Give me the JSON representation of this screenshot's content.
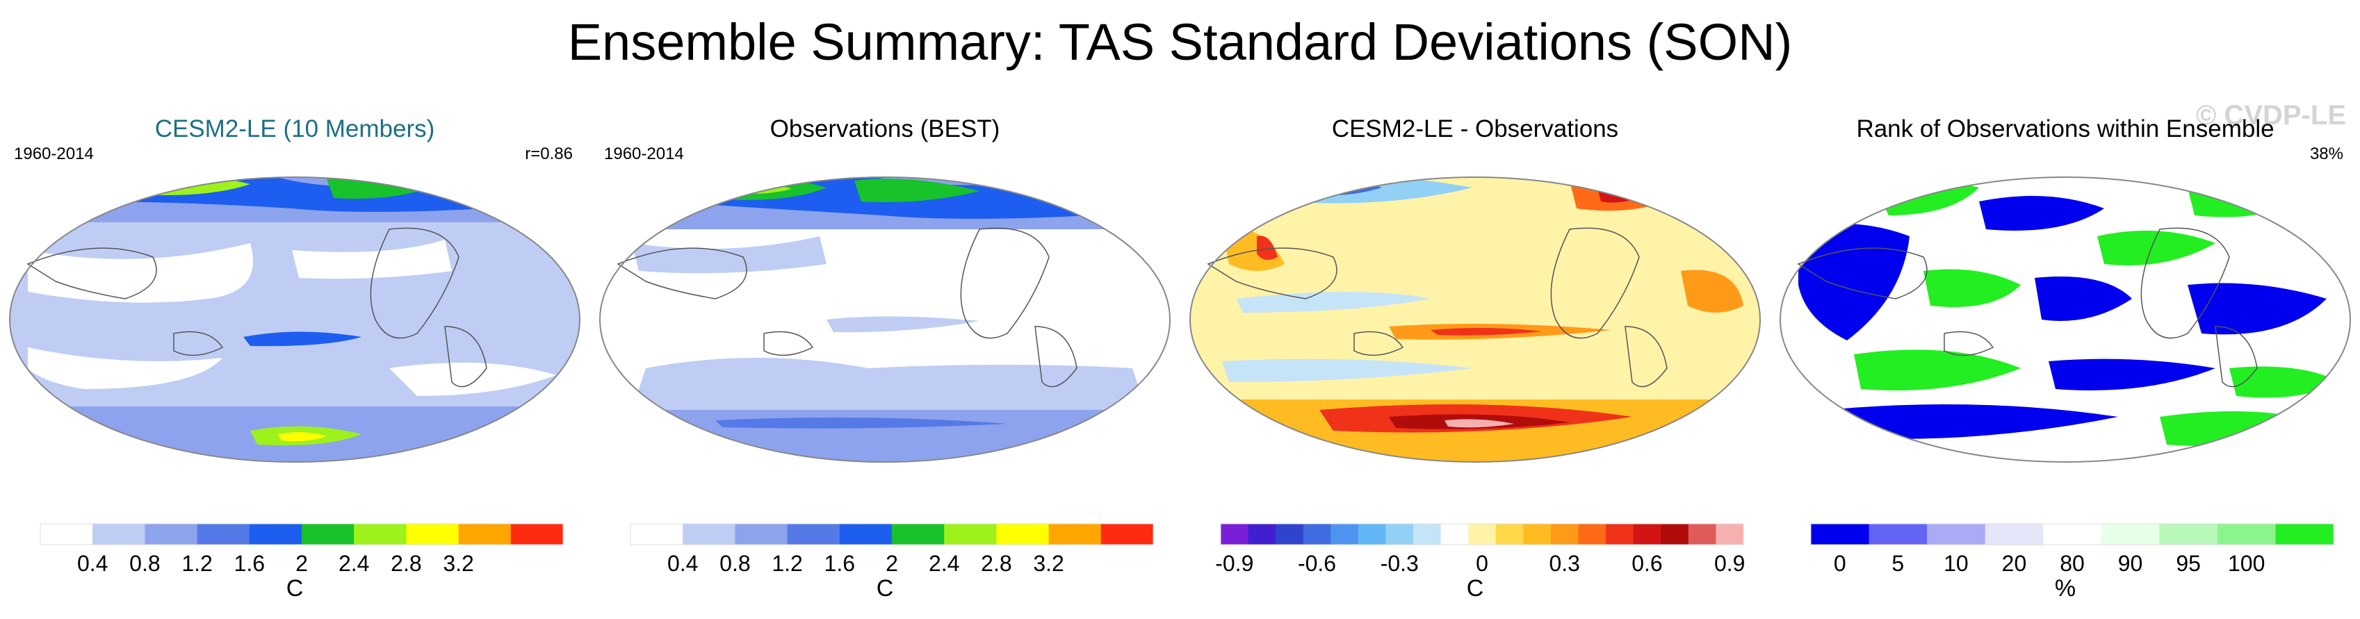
{
  "title": "Ensemble Summary: TAS Standard Deviations (SON)",
  "watermark": "© CVDP-LE",
  "colors": {
    "sd_scale": [
      "#ffffff",
      "#bfcdf5",
      "#8ea3ee",
      "#5579e7",
      "#1d5ef0",
      "#17c22a",
      "#9cf21a",
      "#ffff00",
      "#ffa500",
      "#ff2a10"
    ],
    "diff_scale": [
      "#7a1ed8",
      "#3f1fd0",
      "#2e44ce",
      "#3f6cde",
      "#4f93f0",
      "#61b7f5",
      "#93d0f6",
      "#c6e4f8",
      "#ffffff",
      "#fff3a8",
      "#ffd84a",
      "#ffbc22",
      "#ff9a19",
      "#ff6a18",
      "#f0321a",
      "#d41414",
      "#b10c0c",
      "#e05a5a",
      "#f6b0b0"
    ],
    "rank_scale": [
      "#0000ee",
      "#6464f4",
      "#aaaaf6",
      "#e6e6fb",
      "#ffffff",
      "#e8ffe8",
      "#b8f8b8",
      "#8cf48c",
      "#22ee22"
    ],
    "ocean": "#ffffff",
    "coast": "#555555"
  },
  "panels": [
    {
      "title": "CESM2-LE (10 Members)",
      "years": "1960-2014",
      "stat": "r=0.86",
      "unit": "C",
      "bar_ticks": [
        "0.4",
        "0.8",
        "1.2",
        "1.6",
        "2",
        "2.4",
        "2.8",
        "3.2"
      ],
      "levels": [
        0,
        0.4,
        0.8,
        1.2,
        1.6,
        2,
        2.4,
        2.8,
        3.2
      ]
    },
    {
      "title": "Observations (BEST)",
      "years": "1960-2014",
      "stat": "",
      "unit": "C",
      "bar_ticks": [
        "0.4",
        "0.8",
        "1.2",
        "1.6",
        "2",
        "2.4",
        "2.8",
        "3.2"
      ],
      "levels": [
        0,
        0.4,
        0.8,
        1.2,
        1.6,
        2,
        2.4,
        2.8,
        3.2
      ]
    },
    {
      "title": "CESM2-LE - Observations",
      "years": "",
      "stat": "",
      "unit": "C",
      "bar_ticks": [
        "-0.9",
        "-0.6",
        "-0.3",
        "0",
        "0.3",
        "0.6",
        "0.9"
      ],
      "levels": [
        -0.9,
        -0.6,
        -0.3,
        0,
        0.3,
        0.6,
        0.9
      ]
    },
    {
      "title": "Rank of Observations within Ensemble",
      "years": "",
      "stat": "38%",
      "unit": "%",
      "bar_ticks": [
        "0",
        "5",
        "10",
        "20",
        "80",
        "90",
        "95",
        "100"
      ],
      "levels": [
        0,
        5,
        10,
        20,
        80,
        90,
        95,
        100
      ]
    }
  ],
  "chart_data": [
    {
      "type": "heatmap",
      "title": "CESM2-LE (10 Members)",
      "projection": "Robinson",
      "period": "1960-2014",
      "pattern_correlation": 0.86,
      "variable": "TAS standard deviation",
      "units": "C",
      "contour_levels": [
        0.4,
        0.8,
        1.2,
        1.6,
        2,
        2.4,
        2.8,
        3.2
      ]
    },
    {
      "type": "heatmap",
      "title": "Observations (BEST)",
      "projection": "Robinson",
      "period": "1960-2014",
      "variable": "TAS standard deviation",
      "units": "C",
      "contour_levels": [
        0.4,
        0.8,
        1.2,
        1.6,
        2,
        2.4,
        2.8,
        3.2
      ]
    },
    {
      "type": "heatmap",
      "title": "CESM2-LE - Observations",
      "projection": "Robinson",
      "variable": "difference",
      "units": "C",
      "contour_levels": [
        -0.9,
        -0.6,
        -0.3,
        0,
        0.3,
        0.6,
        0.9
      ]
    },
    {
      "type": "heatmap",
      "title": "Rank of Observations within Ensemble",
      "projection": "Robinson",
      "variable": "rank",
      "units": "%",
      "summary_percent": 38,
      "contour_levels": [
        0,
        5,
        10,
        20,
        80,
        90,
        95,
        100
      ]
    }
  ]
}
